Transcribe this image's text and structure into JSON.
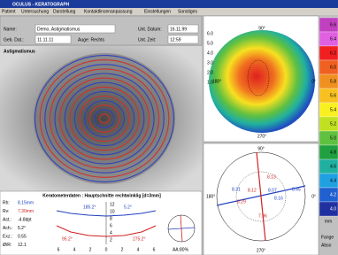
{
  "window": {
    "title": "OCULUS - KERATOGRAPH",
    "menu": [
      "Patient",
      "Untersuchung",
      "Darstellung",
      "Kontaktlinsenanpassung",
      "Einstellungen",
      "Sonstiges"
    ]
  },
  "patient": {
    "name_label": "Name:",
    "name": "Demo, Astigmatismus",
    "date_label": "Unt. Datum:",
    "date": "16.11.99",
    "birth_label": "Geb. Dat.:",
    "birth": "11.11.11",
    "eye": "Auge: Rechts",
    "time_label": "Unt. Zeit:",
    "time": "12:59"
  },
  "image": {
    "label": "Astigmatismus"
  },
  "keratometer": {
    "title": "Keratometerdaten : Hauptschnitte rechtwinklig [d=3mm]",
    "rows": [
      [
        "Rh:",
        "8.15mm"
      ],
      [
        "Rv:",
        "7.30mm"
      ],
      [
        "Ast.:",
        "-4.8dpt"
      ],
      [
        "Ach.:",
        "5.2°"
      ],
      [
        "Exz.:",
        "0.55"
      ],
      [
        "Ø/R:",
        "12.1"
      ]
    ],
    "angles": [
      "185.2°",
      "5.2°",
      "95.2°",
      "275.2°"
    ],
    "axis": [
      "6",
      "4",
      "2",
      "0",
      "2",
      "4",
      "6"
    ],
    "vaxis": [
      "12",
      "10",
      "8",
      "6",
      "4",
      "2"
    ],
    "aa": "AA:80%"
  },
  "topo_map": {
    "distances": [
      "6.0",
      "5.0",
      "4.0",
      "3.0",
      "2.0",
      "1.0"
    ],
    "degrees": [
      "90°",
      "0°",
      "180°",
      "270°"
    ]
  },
  "color_scale": {
    "labels": [
      "6.6",
      "6.4",
      "6.2",
      "6.0",
      "5.8",
      "5.6",
      "5.4",
      "5.2",
      "5.0",
      "4.8",
      "4.6",
      "4.4",
      "4.2",
      "4.0"
    ],
    "unit": "mm",
    "footer": [
      "Fange",
      "Abso"
    ]
  },
  "radius_diagram": {
    "values": [
      "8.31",
      "8.12",
      "8.07",
      "8.29",
      "8.16",
      "8.13",
      "8.45",
      "7.96"
    ],
    "degrees": [
      "90°",
      "0°",
      "180°",
      "270°"
    ]
  }
}
